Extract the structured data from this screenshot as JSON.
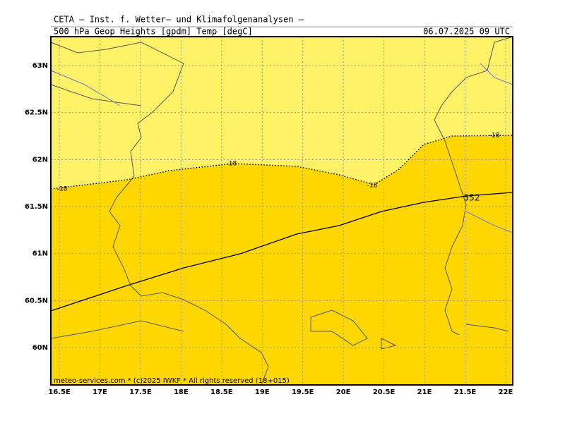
{
  "header": {
    "title": "CETA — Inst. f. Wetter— und Klimafolgenanalysen —",
    "subtitle": "500_hPa_Geop_Heights_[gpdm]_Temp_[degC]",
    "timestamp": "06.07.2025 09 UTC"
  },
  "map": {
    "lon_labels": [
      "16.5E",
      "17E",
      "17.5E",
      "18E",
      "18.5E",
      "19E",
      "19.5E",
      "20E",
      "20.5E",
      "21E",
      "21.5E",
      "22E"
    ],
    "lat_labels": [
      "60N",
      "60.5N",
      "61N",
      "61.5N",
      "62N",
      "62.5N",
      "63N"
    ],
    "contour_labels": [
      "-18",
      "-18",
      "-18",
      "-18",
      "552"
    ],
    "footer": "meteo-services.com * (c)2025 IWKF * All rights reserved (18+015)"
  }
}
